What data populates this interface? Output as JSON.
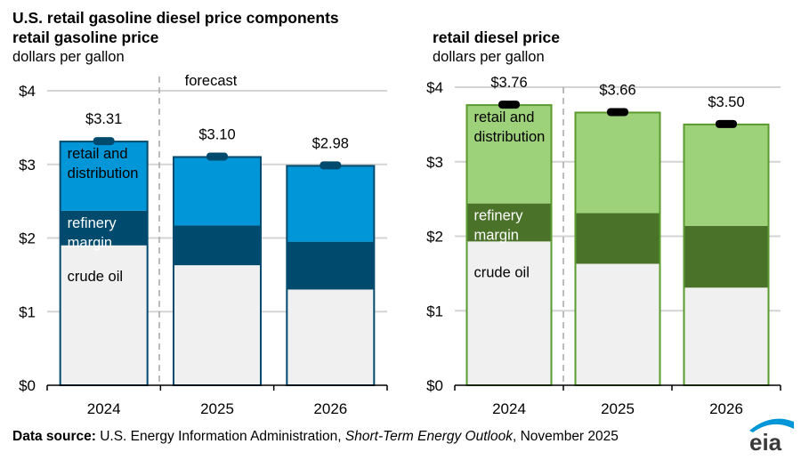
{
  "header": {
    "title": "U.S. retail gasoline diesel price components",
    "left_subtitle": "retail gasoline price",
    "left_units": "dollars per gallon",
    "right_subtitle": "retail diesel price",
    "right_units": "dollars per gallon"
  },
  "footer": {
    "source_label": "Data source:",
    "source_text": " U.S. Energy Information Administration, ",
    "publication": "Short-Term Energy Outlook",
    "date": ", November 2025",
    "logo_text": "eia"
  },
  "chart_data": [
    {
      "type": "bar",
      "stacked": true,
      "title": "retail gasoline price",
      "ylabel": "dollars per gallon",
      "categories": [
        "2024",
        "2025",
        "2026"
      ],
      "series": [
        {
          "name": "crude oil",
          "values": [
            1.9,
            1.63,
            1.3
          ]
        },
        {
          "name": "refinery margin",
          "values": [
            0.47,
            0.54,
            0.65
          ]
        },
        {
          "name": "retail and distribution",
          "values": [
            0.94,
            0.93,
            1.03
          ]
        }
      ],
      "totals": [
        3.31,
        3.1,
        2.98
      ],
      "total_labels": [
        "$3.31",
        "$3.10",
        "$2.98"
      ],
      "ylim": [
        0,
        4
      ],
      "yticks": [
        0,
        1,
        2,
        3,
        4
      ],
      "ytick_labels": [
        "$0",
        "$1",
        "$2",
        "$3",
        "$4"
      ],
      "grid": true,
      "annotation": "forecast",
      "forecast_start_category": "2025",
      "colors": {
        "crude oil": "#f0f0f0",
        "refinery margin": "#004a6e",
        "retail and distribution": "#0096d7",
        "outline": "#004a6e",
        "marker": "#004a6e"
      }
    },
    {
      "type": "bar",
      "stacked": true,
      "title": "retail diesel price",
      "ylabel": "dollars per gallon",
      "categories": [
        "2024",
        "2025",
        "2026"
      ],
      "series": [
        {
          "name": "crude oil",
          "values": [
            1.93,
            1.63,
            1.31
          ]
        },
        {
          "name": "refinery margin",
          "values": [
            0.51,
            0.68,
            0.83
          ]
        },
        {
          "name": "retail and distribution",
          "values": [
            1.32,
            1.35,
            1.36
          ]
        }
      ],
      "totals": [
        3.76,
        3.66,
        3.5
      ],
      "total_labels": [
        "$3.76",
        "$3.66",
        "$3.50"
      ],
      "ylim": [
        0,
        4
      ],
      "yticks": [
        0,
        1,
        2,
        3,
        4
      ],
      "ytick_labels": [
        "$0",
        "$1",
        "$2",
        "$3",
        "$4"
      ],
      "grid": true,
      "forecast_start_category": "2025",
      "colors": {
        "crude oil": "#f0f0f0",
        "refinery margin": "#4a7329",
        "retail and distribution": "#9dd27a",
        "outline": "#5a9a2e",
        "marker": "#000000"
      }
    }
  ],
  "segment_labels": [
    "crude oil",
    "refinery\nmargin",
    "retail and\ndistribution"
  ]
}
